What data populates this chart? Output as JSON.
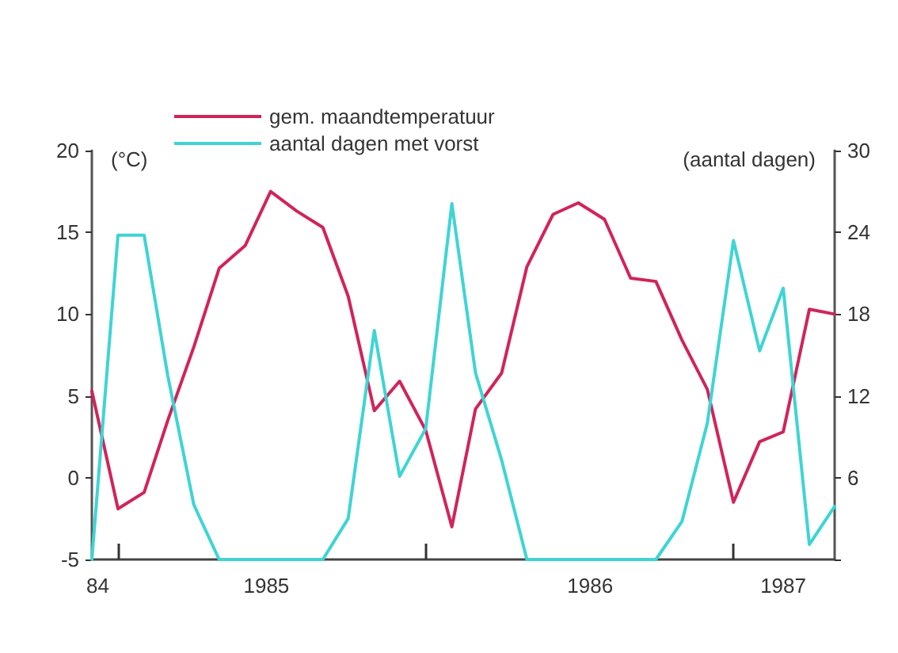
{
  "chart_data": {
    "type": "line",
    "x": [
      "1984-12",
      "1985-01",
      "1985-02",
      "1985-03",
      "1985-04",
      "1985-05",
      "1985-06",
      "1985-07",
      "1985-08",
      "1985-09",
      "1985-10",
      "1985-11",
      "1985-12",
      "1986-01",
      "1986-02",
      "1986-03",
      "1986-04",
      "1986-05",
      "1986-06",
      "1986-07",
      "1986-08",
      "1986-09",
      "1986-10",
      "1986-11",
      "1986-12",
      "1987-01",
      "1987-02",
      "1987-03",
      "1987-04",
      "1987-05"
    ],
    "series": [
      {
        "name": "gem. maandtemperatuur",
        "color": "#d0245a",
        "values": [
          5.3,
          -1.9,
          -0.9,
          3.5,
          8.0,
          12.8,
          14.2,
          17.5,
          16.3,
          15.3,
          11.1,
          4.1,
          5.9,
          2.9,
          -3.0,
          4.2,
          6.4,
          12.9,
          16.1,
          16.8,
          15.8,
          12.2,
          12.0,
          8.4,
          5.4,
          -1.5,
          2.2,
          2.8,
          10.3,
          10.0
        ]
      },
      {
        "name": "aantal dagen met vorst",
        "color": "#3fd4d4",
        "axis": "y2",
        "values": [
          0,
          23.8,
          23.8,
          13.5,
          4.0,
          0,
          0,
          0,
          0,
          0,
          3.0,
          16.8,
          6.1,
          9.6,
          26.1,
          13.7,
          7.3,
          0,
          0,
          0,
          0,
          0,
          0,
          2.8,
          10.0,
          23.4,
          15.3,
          19.9,
          1.1,
          3.9
        ]
      }
    ],
    "ylabel": "(°C)",
    "y2label": "(aantal dagen)",
    "xlim": [
      "1984-12",
      "1987-05"
    ],
    "xticks": [
      {
        "value": "1984-12-08",
        "label": "84"
      },
      {
        "value": "1985-01",
        "label": null
      },
      {
        "value": "1985-06-26",
        "label": "1985"
      },
      {
        "value": "1986-01",
        "label": null
      },
      {
        "value": "1986-07-15",
        "label": "1986"
      },
      {
        "value": "1987-01",
        "label": null
      },
      {
        "value": "1987-03-01",
        "label": "1987"
      }
    ],
    "ylim": [
      -5,
      20
    ],
    "yticks": [
      -5,
      0,
      5,
      10,
      15,
      20
    ],
    "y2lim": [
      0,
      30
    ],
    "y2ticks": [
      {
        "value": 0,
        "label": null
      },
      6,
      12,
      18,
      24,
      30
    ],
    "grid": false,
    "legend": "top left",
    "marker": "none",
    "line_style": "solid"
  }
}
